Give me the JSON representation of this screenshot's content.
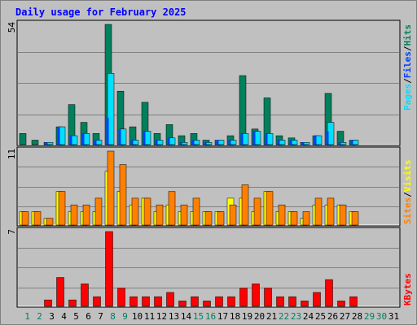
{
  "title": "Daily usage for February 2025",
  "colors": {
    "background": "#c0c0c0",
    "plot_bg": "#f8f8f8",
    "grid": "#808080",
    "hits": "#00805c",
    "files": "#0040ff",
    "pages": "#00e0ff",
    "visits": "#ffff00",
    "sites": "#ff8000",
    "kbytes": "#ff0000",
    "title": "#0000ff",
    "weekend_day": "#00805c",
    "weekday_day": "#000000"
  },
  "days": [
    "1",
    "2",
    "3",
    "4",
    "5",
    "6",
    "7",
    "8",
    "9",
    "10",
    "11",
    "12",
    "13",
    "14",
    "15",
    "16",
    "17",
    "18",
    "19",
    "20",
    "21",
    "22",
    "23",
    "24",
    "25",
    "26",
    "27",
    "28",
    "29",
    "30",
    "31"
  ],
  "weekend_days": [
    1,
    2,
    8,
    9,
    15,
    16,
    22,
    23,
    29,
    30
  ],
  "chart_data": {
    "type": "bar",
    "title": "Daily usage for February 2025",
    "categories": [
      "1",
      "2",
      "3",
      "4",
      "5",
      "6",
      "7",
      "8",
      "9",
      "10",
      "11",
      "12",
      "13",
      "14",
      "15",
      "16",
      "17",
      "18",
      "19",
      "20",
      "21",
      "22",
      "23",
      "24",
      "25",
      "26",
      "27",
      "28",
      "29",
      "30",
      "31"
    ],
    "panels": [
      {
        "ymax_label": "54",
        "ymax": 54,
        "legend": [
          {
            "text": "Pages",
            "color": "#00e0ff"
          },
          {
            "text": "/",
            "color": "#000000"
          },
          {
            "text": "Files",
            "color": "#0040ff"
          },
          {
            "text": "/",
            "color": "#000000"
          },
          {
            "text": "Hits",
            "color": "#00805c"
          }
        ],
        "series": [
          {
            "name": "Hits",
            "color": "#00805c",
            "values": [
              5,
              2,
              1,
              8,
              18,
              10,
              5,
              54,
              24,
              8,
              19,
              5,
              9,
              4,
              5,
              2,
              2,
              4,
              31,
              7,
              21,
              4,
              3,
              1,
              4,
              23,
              6,
              2,
              0,
              0,
              0
            ]
          },
          {
            "name": "Files",
            "color": "#0040ff",
            "values": [
              0,
              0,
              1,
              8,
              4,
              5,
              2,
              12,
              7,
              2,
              6,
              2,
              3,
              1,
              2,
              1,
              2,
              2,
              5,
              6,
              5,
              2,
              2,
              1,
              4,
              6,
              1,
              2,
              0,
              0,
              0
            ]
          },
          {
            "name": "Pages",
            "color": "#00e0ff",
            "values": [
              0,
              0,
              1,
              8,
              4,
              5,
              2,
              32,
              7,
              2,
              6,
              2,
              3,
              1,
              2,
              1,
              2,
              2,
              5,
              6,
              5,
              2,
              2,
              1,
              4,
              10,
              1,
              2,
              0,
              0,
              0
            ]
          }
        ]
      },
      {
        "ymax_label": "11",
        "ymax": 11,
        "legend": [
          {
            "text": "Sites",
            "color": "#ff8000"
          },
          {
            "text": "/",
            "color": "#000000"
          },
          {
            "text": "Visits",
            "color": "#ffff00"
          }
        ],
        "series": [
          {
            "name": "Visits",
            "color": "#ffff00",
            "values": [
              2,
              2,
              1,
              5,
              2,
              2,
              2,
              8,
              5,
              3,
              4,
              2,
              3,
              2,
              2,
              2,
              2,
              4,
              4,
              2,
              5,
              2,
              2,
              1,
              3,
              3,
              3,
              2,
              0,
              0,
              0
            ]
          },
          {
            "name": "Sites",
            "color": "#ff8000",
            "values": [
              2,
              2,
              1,
              5,
              3,
              3,
              4,
              11,
              9,
              4,
              4,
              3,
              5,
              3,
              4,
              2,
              2,
              3,
              6,
              4,
              5,
              3,
              2,
              2,
              4,
              4,
              3,
              2,
              0,
              0,
              0
            ]
          }
        ]
      },
      {
        "ymax_label": "7",
        "ymax": 7,
        "legend": [
          {
            "text": "KBytes",
            "color": "#ff0000"
          }
        ],
        "series": [
          {
            "name": "KBytes",
            "color": "#ff0000",
            "values": [
              0,
              0,
              0.6,
              2.7,
              0.6,
              2.1,
              0.9,
              7,
              1.7,
              0.9,
              0.9,
              0.9,
              1.3,
              0.5,
              0.9,
              0.5,
              0.9,
              0.9,
              1.7,
              2.1,
              1.7,
              0.9,
              0.9,
              0.5,
              1.3,
              2.5,
              0.5,
              0.9,
              0,
              0,
              0
            ]
          }
        ]
      }
    ]
  }
}
